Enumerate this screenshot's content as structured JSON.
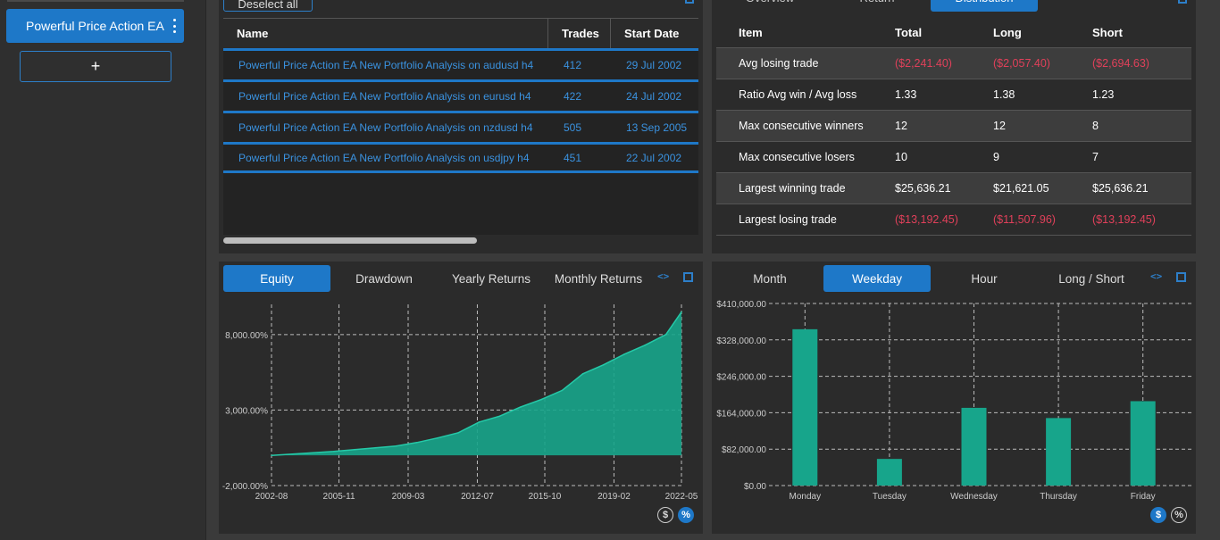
{
  "sidebar": {
    "strategy_label": "Powerful Price Action EA",
    "add_label": "+"
  },
  "list_panel": {
    "deselect_label": "Deselect all",
    "columns": [
      "Name",
      "Trades",
      "Start Date"
    ],
    "rows": [
      {
        "name": "Powerful Price Action EA New Portfolio Analysis on  audusd h4",
        "trades": "412",
        "start": "29 Jul 2002"
      },
      {
        "name": "Powerful Price Action EA New Portfolio Analysis on eurusd h4",
        "trades": "422",
        "start": "24 Jul 2002"
      },
      {
        "name": "Powerful Price Action EA New Portfolio Analysis on nzdusd h4",
        "trades": "505",
        "start": "13 Sep 2005"
      },
      {
        "name": "Powerful Price Action EA New Portfolio Analysis on usdjpy h4",
        "trades": "451",
        "start": "22 Jul 2002"
      }
    ]
  },
  "stats_panel": {
    "tabs": [
      "Overview",
      "Return",
      "Distribution"
    ],
    "active_tab": "Distribution",
    "columns": [
      "Item",
      "Total",
      "Long",
      "Short"
    ],
    "rows": [
      {
        "item": "Avg losing trade",
        "total": "($2,241.40)",
        "long": "($2,057.40)",
        "short": "($2,694.63)",
        "neg": true
      },
      {
        "item": "Ratio Avg win / Avg loss",
        "total": "1.33",
        "long": "1.38",
        "short": "1.23",
        "neg": false
      },
      {
        "item": "Max consecutive winners",
        "total": "12",
        "long": "12",
        "short": "8",
        "neg": false
      },
      {
        "item": "Max consecutive losers",
        "total": "10",
        "long": "9",
        "short": "7",
        "neg": false
      },
      {
        "item": "Largest winning trade",
        "total": "$25,636.21",
        "long": "$21,621.05",
        "short": "$25,636.21",
        "neg": false
      },
      {
        "item": "Largest losing trade",
        "total": "($13,192.45)",
        "long": "($11,507.96)",
        "short": "($13,192.45)",
        "neg": true
      }
    ]
  },
  "equity_panel": {
    "tabs": [
      "Equity",
      "Drawdown",
      "Yearly Returns",
      "Monthly Returns"
    ],
    "active_tab": "Equity",
    "toggle_dollar": "$",
    "toggle_percent": "%"
  },
  "weekday_panel": {
    "tabs": [
      "Month",
      "Weekday",
      "Hour",
      "Long / Short"
    ],
    "active_tab": "Weekday",
    "toggle_dollar": "$",
    "toggle_percent": "%"
  },
  "chart_data": [
    {
      "type": "area",
      "title": "",
      "xlabel": "",
      "ylabel": "",
      "x_ticks": [
        "2002-08",
        "2005-11",
        "2009-03",
        "2012-07",
        "2015-10",
        "2019-02",
        "2022-05"
      ],
      "y_ticks": [
        "-2,000.00%",
        "3,000.00%",
        "8,000.00%"
      ],
      "ylim": [
        -2000,
        10000
      ],
      "series": [
        {
          "x": [
            "2002-08",
            "2003-08",
            "2004-08",
            "2005-08",
            "2006-08",
            "2007-08",
            "2008-08",
            "2009-08",
            "2010-08",
            "2011-08",
            "2012-08",
            "2013-08",
            "2014-08",
            "2015-08",
            "2016-08",
            "2017-08",
            "2018-08",
            "2019-08",
            "2020-08",
            "2021-08",
            "2022-05"
          ],
          "values": [
            0,
            80,
            170,
            260,
            380,
            500,
            620,
            850,
            1150,
            1500,
            2200,
            2600,
            3200,
            3700,
            4300,
            5400,
            6000,
            6700,
            7300,
            8000,
            9500
          ]
        }
      ],
      "color": "#17a58b",
      "grid": true
    },
    {
      "type": "bar",
      "title": "",
      "xlabel": "",
      "ylabel": "",
      "categories": [
        "Monday",
        "Tuesday",
        "Wednesday",
        "Thursday",
        "Friday"
      ],
      "values": [
        352000,
        60000,
        175000,
        152000,
        190000
      ],
      "y_ticks": [
        "$0.00",
        "$82,000.00",
        "$164,000.00",
        "$246,000.00",
        "$328,000.00",
        "$410,000.00"
      ],
      "ylim": [
        0,
        410000
      ],
      "color": "#17a58b",
      "grid": true
    }
  ]
}
